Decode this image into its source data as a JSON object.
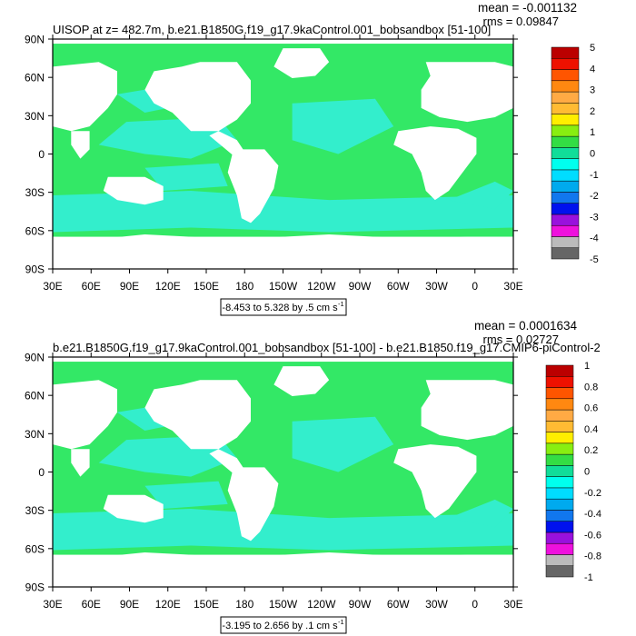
{
  "colors": {
    "land": "#ffffff",
    "ocean_main": "#33e866",
    "ocean_alt": "#33eecc",
    "frame": "#000000"
  },
  "x_ticks": [
    "30E",
    "60E",
    "90E",
    "120E",
    "150E",
    "180",
    "150W",
    "120W",
    "90W",
    "60W",
    "30W",
    "0",
    "30E"
  ],
  "y_ticks": [
    "90N",
    "60N",
    "30N",
    "0",
    "30S",
    "60S",
    "90S"
  ],
  "colorbar_colors": [
    "#666666",
    "#bbbbbb",
    "#ee11dd",
    "#9911dd",
    "#0011ee",
    "#1177ee",
    "#00aaee",
    "#00ddff",
    "#00ffee",
    "#11dd99",
    "#33dd44",
    "#88ee11",
    "#ffee00",
    "#ffbb33",
    "#ffaa44",
    "#ff8811",
    "#ff5500",
    "#ee1100",
    "#bb0000"
  ],
  "chart_data": [
    {
      "type": "heatmap",
      "title": "UISOP at z= 482.7m, b.e21.B1850G.f19_g17.9kaControl.001_bobsandbox [51-100]",
      "stats": {
        "mean": "mean = -0.001132",
        "rms": "rms = 0.09847"
      },
      "contour_info": "-8.453 to 5.328 by .5 cm s",
      "contour_unit_exp": "-1",
      "colorbar_labels": [
        "5",
        "4",
        "3",
        "2",
        "1",
        "0",
        "-1",
        "-2",
        "-3",
        "-4",
        "-5"
      ],
      "xlim": [
        "30E",
        "30E"
      ],
      "ylim": [
        "90S",
        "90N"
      ]
    },
    {
      "type": "heatmap",
      "title": "b.e21.B1850G.f19_g17.9kaControl.001_bobsandbox [51-100] - b.e21.B1850.f19_g17.CMIP6-piControl-2",
      "stats": {
        "mean": "mean = 0.0001634",
        "rms": "rms = 0.02727"
      },
      "contour_info": "-3.195 to 2.656 by .1 cm s",
      "contour_unit_exp": "-1",
      "colorbar_labels": [
        "1",
        "0.8",
        "0.6",
        "0.4",
        "0.2",
        "0",
        "-0.2",
        "-0.4",
        "-0.6",
        "-0.8",
        "-1"
      ],
      "xlim": [
        "30E",
        "30E"
      ],
      "ylim": [
        "90S",
        "90N"
      ]
    }
  ]
}
